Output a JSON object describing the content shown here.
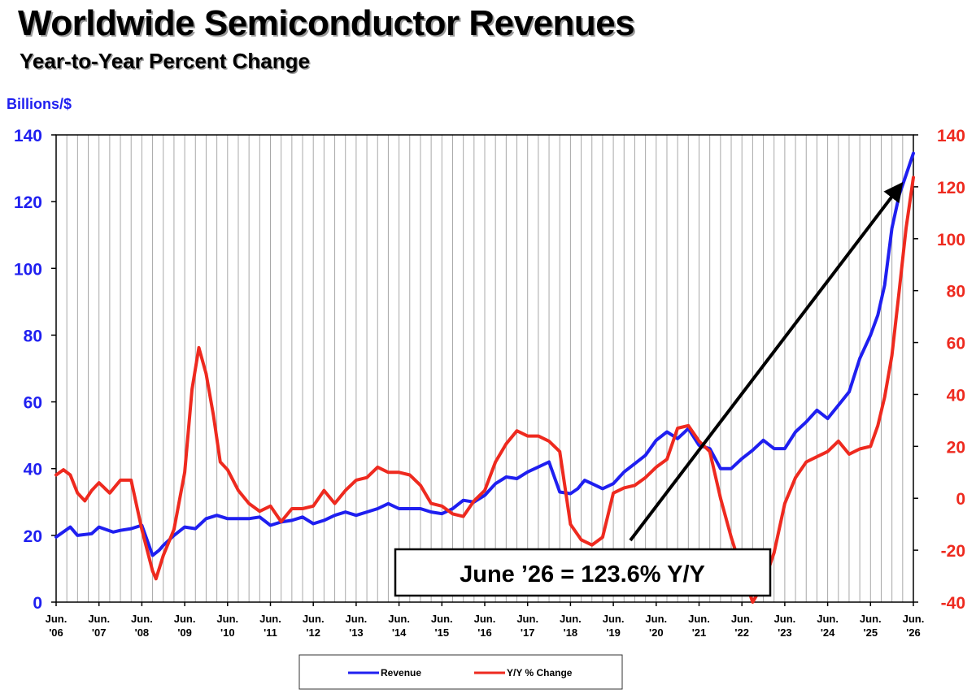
{
  "title": "Worldwide Semiconductor Revenues",
  "subtitle": "Year-to-Year Percent Change",
  "annotation": "June ’26 = 123.6% Y/Y",
  "colors": {
    "revenue": "#1f1ff0",
    "yy": "#ee2a1f",
    "grid": "#a8a8a8",
    "arrow": "#000000"
  },
  "chart_data": {
    "type": "line",
    "x_tick_labels": [
      [
        "Jun.",
        "'06"
      ],
      [
        "Jun.",
        "'07"
      ],
      [
        "Jun.",
        "'08"
      ],
      [
        "Jun.",
        "'09"
      ],
      [
        "Jun.",
        "'10"
      ],
      [
        "Jun.",
        "'11"
      ],
      [
        "Jun.",
        "'12"
      ],
      [
        "Jun.",
        "'13"
      ],
      [
        "Jun.",
        "'14"
      ],
      [
        "Jun.",
        "'15"
      ],
      [
        "Jun.",
        "'16"
      ],
      [
        "Jun.",
        "'17"
      ],
      [
        "Jun.",
        "'18"
      ],
      [
        "Jun.",
        "'19"
      ],
      [
        "Jun.",
        "'20"
      ],
      [
        "Jun.",
        "'21"
      ],
      [
        "Jun.",
        "'22"
      ],
      [
        "Jun.",
        "'23"
      ],
      [
        "Jun.",
        "'24"
      ],
      [
        "Jun.",
        "'25"
      ],
      [
        "Jun.",
        "'26"
      ]
    ],
    "x_range": [
      2006.5,
      2026.5
    ],
    "y_left": {
      "label": "Billions/$",
      "min": 0,
      "max": 140,
      "ticks": [
        0,
        20,
        40,
        60,
        80,
        100,
        120,
        140
      ]
    },
    "y_right": {
      "min": -40,
      "max": 140,
      "ticks": [
        -40,
        -20,
        0,
        20,
        40,
        60,
        80,
        100,
        120,
        140
      ]
    },
    "grid": "vertical",
    "legend_position": "bottom-center",
    "series": [
      {
        "name": "Revenue",
        "axis": "left",
        "x": [
          2006.5,
          2006.83,
          2007.0,
          2007.33,
          2007.5,
          2007.83,
          2008.0,
          2008.25,
          2008.5,
          2008.75,
          2008.9,
          2009.0,
          2009.25,
          2009.5,
          2009.75,
          2010.0,
          2010.25,
          2010.5,
          2010.75,
          2011.0,
          2011.25,
          2011.5,
          2011.75,
          2012.0,
          2012.25,
          2012.5,
          2012.75,
          2013.0,
          2013.25,
          2013.5,
          2013.75,
          2014.0,
          2014.25,
          2014.5,
          2014.75,
          2015.0,
          2015.25,
          2015.5,
          2015.75,
          2016.0,
          2016.25,
          2016.5,
          2016.75,
          2017.0,
          2017.25,
          2017.5,
          2017.75,
          2018.0,
          2018.25,
          2018.5,
          2018.67,
          2018.83,
          2019.0,
          2019.25,
          2019.5,
          2019.75,
          2020.0,
          2020.25,
          2020.5,
          2020.75,
          2021.0,
          2021.25,
          2021.5,
          2021.75,
          2022.0,
          2022.25,
          2022.5,
          2022.75,
          2023.0,
          2023.25,
          2023.5,
          2023.75,
          2024.0,
          2024.25,
          2024.5,
          2024.75,
          2025.0,
          2025.25,
          2025.5,
          2025.67,
          2025.83,
          2026.0,
          2026.17,
          2026.33,
          2026.5
        ],
        "values": [
          19.5,
          22.5,
          20.0,
          20.5,
          22.5,
          21.0,
          21.5,
          22.0,
          23.0,
          14.0,
          15.5,
          17.0,
          20.0,
          22.5,
          22.0,
          25.0,
          26.0,
          25.0,
          25.0,
          25.0,
          25.5,
          23.0,
          24.0,
          24.5,
          25.5,
          23.5,
          24.5,
          26.0,
          27.0,
          26.0,
          27.0,
          28.0,
          29.5,
          28.0,
          28.0,
          28.0,
          27.0,
          26.5,
          28.0,
          30.5,
          30.0,
          32.0,
          35.5,
          37.5,
          37.0,
          39.0,
          40.5,
          42.0,
          33.0,
          32.5,
          34.0,
          36.5,
          35.5,
          34.0,
          35.5,
          39.0,
          41.5,
          44.0,
          48.5,
          51.0,
          49.0,
          52.0,
          47.0,
          46.0,
          40.0,
          40.0,
          43.0,
          45.5,
          48.5,
          46.0,
          46.0,
          51.0,
          54.0,
          57.5,
          55.0,
          59.0,
          63.0,
          73.0,
          80.0,
          86.0,
          95.0,
          112.0,
          122.0,
          128.0,
          134.5
        ]
      },
      {
        "name": "Y/Y % Change",
        "axis": "right",
        "x": [
          2006.5,
          2006.67,
          2006.83,
          2007.0,
          2007.17,
          2007.33,
          2007.5,
          2007.75,
          2008.0,
          2008.25,
          2008.5,
          2008.75,
          2008.83,
          2009.0,
          2009.25,
          2009.5,
          2009.67,
          2009.83,
          2010.0,
          2010.17,
          2010.33,
          2010.5,
          2010.75,
          2011.0,
          2011.25,
          2011.5,
          2011.75,
          2012.0,
          2012.25,
          2012.5,
          2012.75,
          2013.0,
          2013.25,
          2013.5,
          2013.75,
          2014.0,
          2014.25,
          2014.5,
          2014.75,
          2015.0,
          2015.25,
          2015.5,
          2015.75,
          2016.0,
          2016.25,
          2016.5,
          2016.75,
          2017.0,
          2017.25,
          2017.5,
          2017.75,
          2018.0,
          2018.25,
          2018.5,
          2018.75,
          2019.0,
          2019.25,
          2019.5,
          2019.75,
          2020.0,
          2020.25,
          2020.5,
          2020.75,
          2021.0,
          2021.25,
          2021.5,
          2021.75,
          2022.0,
          2022.25,
          2022.5,
          2022.75,
          2023.0,
          2023.25,
          2023.5,
          2023.75,
          2024.0,
          2024.25,
          2024.5,
          2024.75,
          2025.0,
          2025.25,
          2025.5,
          2025.67,
          2025.83,
          2026.0,
          2026.17,
          2026.33,
          2026.5
        ],
        "values": [
          9,
          11,
          9,
          2,
          -1,
          3,
          6,
          2,
          7,
          7,
          -12,
          -28,
          -31,
          -22,
          -12,
          10,
          42,
          58,
          48,
          32,
          14,
          11,
          3,
          -2,
          -5,
          -3,
          -9,
          -4,
          -4,
          -3,
          3,
          -2,
          3,
          7,
          8,
          12,
          10,
          10,
          9,
          5,
          -2,
          -3,
          -6,
          -7,
          -1,
          3,
          14,
          21,
          26,
          24,
          24,
          22,
          18,
          -10,
          -16,
          -18,
          -15,
          2,
          4,
          5,
          8,
          12,
          15,
          27,
          28,
          22,
          18,
          0,
          -15,
          -28,
          -40,
          -33,
          -21,
          -2,
          8,
          14,
          16,
          18,
          22,
          17,
          19,
          20,
          28,
          39,
          55,
          80,
          104,
          123.6
        ]
      }
    ]
  },
  "legend": [
    {
      "name": "Revenue"
    },
    {
      "name": "Y/Y % Change"
    }
  ]
}
